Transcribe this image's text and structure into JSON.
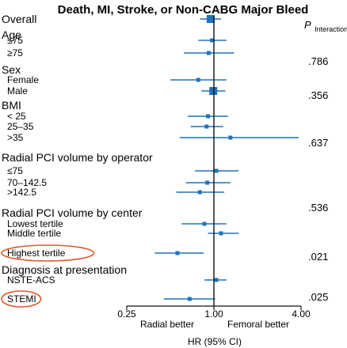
{
  "chart_data": {
    "type": "forest",
    "title": "Death, MI, Stroke, or Non-CABG Major Bleed",
    "xlabel": "HR (95% CI)",
    "xscale": "log",
    "xlim": [
      0.25,
      4.0
    ],
    "xticks": [
      "0.25",
      "1.00",
      "4.00"
    ],
    "reference_line": 1.0,
    "direction_labels": {
      "left": "Radial better",
      "right": "Femoral better"
    },
    "p_header": {
      "main": "P",
      "sub": "Interaction"
    },
    "rows": [
      {
        "label": "Overall",
        "level": "group",
        "hr": 0.95,
        "lo": 0.8,
        "hi": 1.12,
        "marker": "large"
      },
      {
        "label": "Age",
        "level": "group"
      },
      {
        "label": "≤75",
        "level": "sub",
        "hr": 0.97,
        "lo": 0.78,
        "hi": 1.22
      },
      {
        "label": "≥75",
        "level": "sub",
        "hr": 0.92,
        "lo": 0.62,
        "hi": 1.38
      },
      {
        "label": "Sex",
        "level": "group"
      },
      {
        "label": "Female",
        "level": "sub",
        "hr": 0.78,
        "lo": 0.5,
        "hi": 1.22
      },
      {
        "label": "Male",
        "level": "sub",
        "hr": 0.99,
        "lo": 0.82,
        "hi": 1.2,
        "marker": "large"
      },
      {
        "label": "BMI",
        "level": "group"
      },
      {
        "label": "< 25",
        "level": "sub",
        "hr": 0.91,
        "lo": 0.66,
        "hi": 1.25
      },
      {
        "label": "25–35",
        "level": "sub",
        "hr": 0.89,
        "lo": 0.69,
        "hi": 1.16
      },
      {
        "label": ">35",
        "level": "sub",
        "hr": 1.3,
        "lo": 0.58,
        "hi": 3.85
      },
      {
        "label": "Radial PCI volume by operator",
        "level": "group"
      },
      {
        "label": "≤75",
        "level": "sub",
        "hr": 1.04,
        "lo": 0.74,
        "hi": 1.48
      },
      {
        "label": "70–142.5",
        "level": "sub",
        "hr": 0.9,
        "lo": 0.64,
        "hi": 1.3
      },
      {
        "label": ">142.5",
        "level": "sub",
        "hr": 0.8,
        "lo": 0.55,
        "hi": 1.18
      },
      {
        "label": "Radial PCI volume by center",
        "level": "group"
      },
      {
        "label": "Lowest tertile",
        "level": "sub",
        "hr": 0.86,
        "lo": 0.6,
        "hi": 1.22
      },
      {
        "label": "Middle tertile",
        "level": "sub",
        "hr": 1.12,
        "lo": 0.91,
        "hi": 1.48
      },
      {
        "label": "Highest tertile",
        "level": "sub",
        "hr": 0.56,
        "lo": 0.39,
        "hi": 0.85,
        "circled": true
      },
      {
        "label": "Diagnosis at presentation",
        "level": "group"
      },
      {
        "label": "NSTE-ACS",
        "level": "sub",
        "hr": 1.04,
        "lo": 0.86,
        "hi": 1.22
      },
      {
        "label": "STEMI",
        "level": "sub",
        "hr": 0.68,
        "lo": 0.45,
        "hi": 1.02,
        "circled": true
      }
    ],
    "p_values": [
      ".786",
      ".356",
      ".637",
      ".536",
      ".021",
      ".025"
    ],
    "colors": {
      "ci": "#1e73be",
      "marker": "#1e73be",
      "axis": "#111111",
      "highlight": "#e05a2b"
    }
  }
}
